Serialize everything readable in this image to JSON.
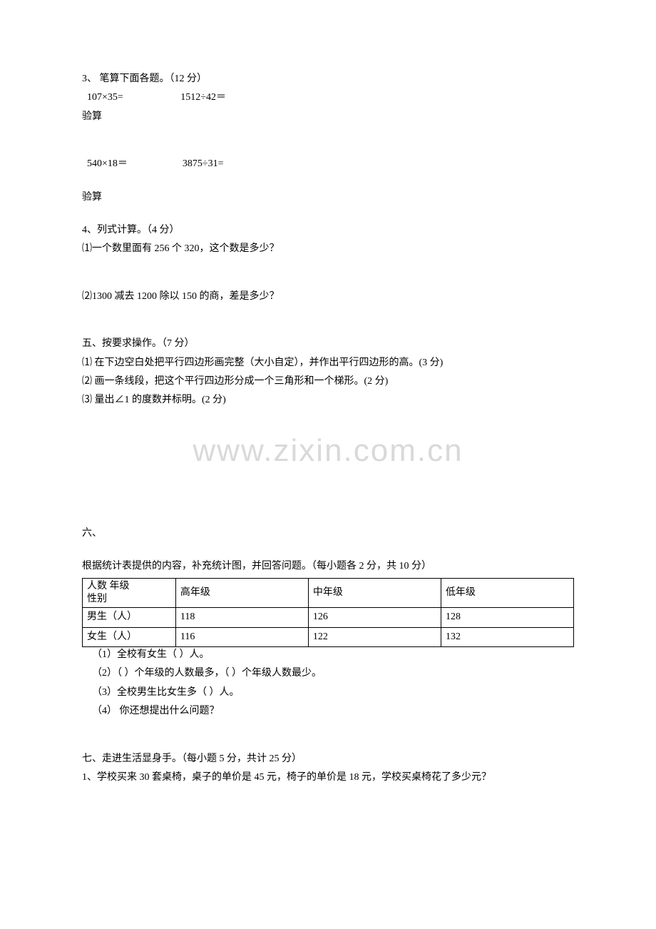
{
  "q3": {
    "title": "3、 笔算下面各题。（12 分）",
    "row1": "  107×35=                       1512÷42＝",
    "check": "验算",
    "row2": "  540×18＝                      3875÷31=",
    "check2": "验算"
  },
  "q4": {
    "title": "4、列式计算。（4 分）",
    "item1": "⑴一个数里面有 256 个 320，这个数是多少？",
    "item2": "⑵1300 减去 1200 除以 150 的商，差是多少？"
  },
  "q5": {
    "title": "五、按要求操作。（7 分）",
    "item1": "⑴ 在下边空白处把平行四边形画完整（大小自定），并作出平行四边形的高。(3 分)",
    "item2": "⑵ 画一条线段，把这个平行四边形分成一个三角形和一个梯形。(2 分)",
    "item3": "⑶ 量出∠1 的度数并标明。(2 分)"
  },
  "watermark": "www.zixin.com.cn",
  "q6": {
    "title": "六、",
    "subtitle": "根据统计表提供的内容，补充统计图，并回答问题。（每小题各 2 分，共 10 分）",
    "table": {
      "header_left_top": "人数    年级",
      "header_left_bottom": "性别",
      "cols": [
        "高年级",
        "中年级",
        "低年级"
      ],
      "rows": [
        {
          "label": "男生（人）",
          "vals": [
            "118",
            "126",
            "128"
          ]
        },
        {
          "label": "女生（人）",
          "vals": [
            "116",
            "122",
            "132"
          ]
        }
      ]
    },
    "item1": "（1）全校有女生（       ）人。",
    "item2": "（2）（     ）个年级的人数最多，（     ）个年级人数最少。",
    "item3": "（3）全校男生比女生多（      ）人。",
    "item4": "（4） 你还想提出什么问题？"
  },
  "q7": {
    "title": "七、走进生活显身手。（每小题 5 分，共计 25 分）",
    "item1": "1、学校买来 30 套桌椅，桌子的单价是 45 元，椅子的单价是 18 元，学校买桌椅花了多少元？"
  }
}
